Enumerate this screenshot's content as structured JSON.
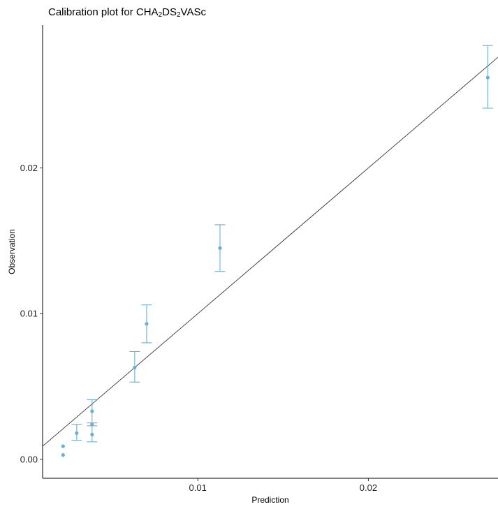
{
  "chart_data": {
    "type": "scatter",
    "title": {
      "parts": [
        {
          "text": "Calibration plot for CHA",
          "sub": false
        },
        {
          "text": "2",
          "sub": true
        },
        {
          "text": "DS",
          "sub": false
        },
        {
          "text": "2",
          "sub": true
        },
        {
          "text": "VASc",
          "sub": false
        }
      ]
    },
    "xlabel": "Prediction",
    "ylabel": "Observation",
    "xlim": [
      0.0009,
      0.0276
    ],
    "ylim": [
      -0.0013,
      0.0298
    ],
    "x_ticks": [
      {
        "value": 0.01,
        "label": "0.01"
      },
      {
        "value": 0.02,
        "label": "0.02"
      }
    ],
    "y_ticks": [
      {
        "value": 0.0,
        "label": "0.00"
      },
      {
        "value": 0.01,
        "label": "0.01"
      },
      {
        "value": 0.02,
        "label": "0.02"
      }
    ],
    "reference_line": {
      "slope": 1,
      "intercept": 0
    },
    "grid": false,
    "point_color": "#6aaed6",
    "line_color": "#333333",
    "points": [
      {
        "x": 0.0021,
        "y": 0.0003,
        "ylow": 0.0003,
        "yhigh": 0.0003
      },
      {
        "x": 0.0021,
        "y": 0.0009,
        "ylow": 0.0009,
        "yhigh": 0.0009
      },
      {
        "x": 0.0029,
        "y": 0.0018,
        "ylow": 0.0013,
        "yhigh": 0.0024
      },
      {
        "x": 0.0038,
        "y": 0.0017,
        "ylow": 0.0012,
        "yhigh": 0.0023
      },
      {
        "x": 0.0038,
        "y": 0.0024,
        "ylow": 0.0024,
        "yhigh": 0.0024
      },
      {
        "x": 0.0038,
        "y": 0.0033,
        "ylow": 0.0025,
        "yhigh": 0.0041
      },
      {
        "x": 0.0063,
        "y": 0.0063,
        "ylow": 0.0053,
        "yhigh": 0.0074
      },
      {
        "x": 0.007,
        "y": 0.0093,
        "ylow": 0.008,
        "yhigh": 0.0106
      },
      {
        "x": 0.0113,
        "y": 0.0145,
        "ylow": 0.0129,
        "yhigh": 0.0161
      },
      {
        "x": 0.027,
        "y": 0.0262,
        "ylow": 0.0241,
        "yhigh": 0.0284
      }
    ]
  }
}
